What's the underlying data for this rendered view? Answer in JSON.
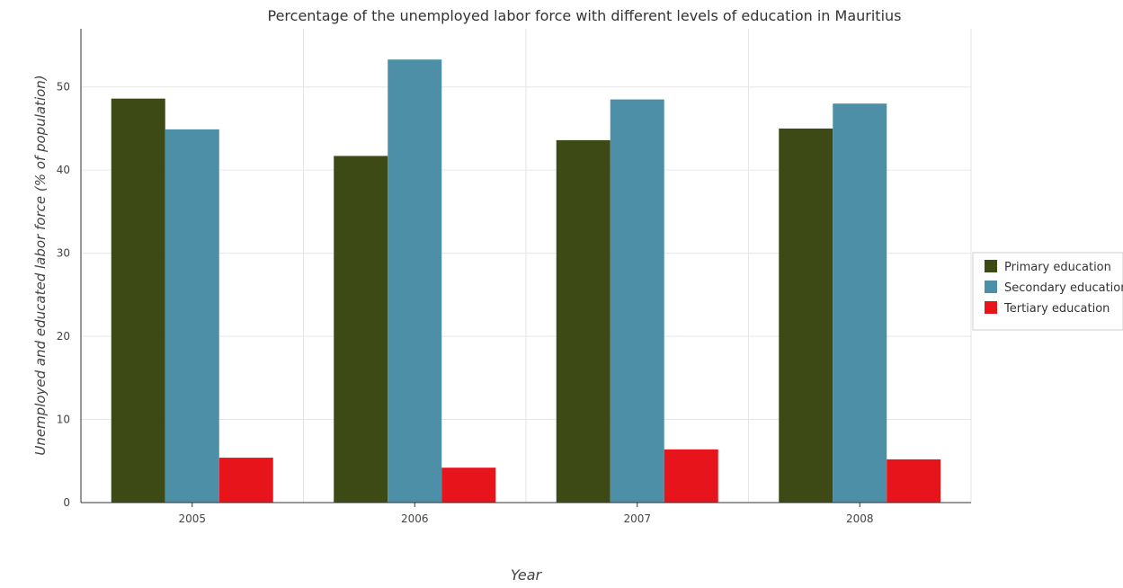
{
  "chart_data": {
    "type": "bar",
    "title": "Percentage of the unemployed labor force with different levels of education in Mauritius",
    "xlabel": "Year",
    "ylabel": "Unemployed and educated labor force (% of population)",
    "categories": [
      "2005",
      "2006",
      "2007",
      "2008"
    ],
    "series": [
      {
        "name": "Primary education",
        "color": "#3d4a16",
        "values": [
          48.6,
          41.7,
          43.6,
          45.0
        ]
      },
      {
        "name": "Secondary education",
        "color": "#4e8fa8",
        "values": [
          44.9,
          53.3,
          48.5,
          48.0
        ]
      },
      {
        "name": "Tertiary education",
        "color": "#e8141c",
        "values": [
          5.4,
          4.2,
          6.4,
          5.2
        ]
      }
    ],
    "ylim": [
      0,
      57
    ],
    "yticks": [
      "0",
      "10",
      "20",
      "30",
      "40",
      "50"
    ],
    "grid": true,
    "legend_position": "right"
  }
}
